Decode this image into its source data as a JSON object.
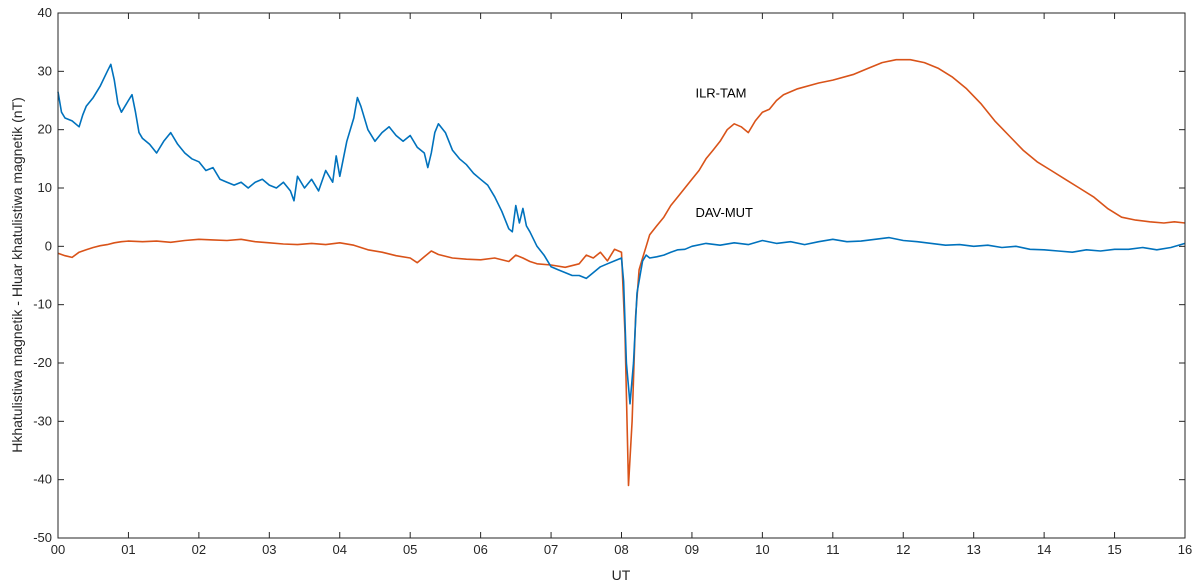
{
  "chart_data": {
    "type": "line",
    "title": "",
    "xlabel": "UT",
    "ylabel": "Hkhatulistiwa magnetik - Hluar khatulistiwa magnetik (nT)",
    "xlim": [
      0,
      16
    ],
    "ylim": [
      -50,
      40
    ],
    "grid": false,
    "legend": "none",
    "x_ticks": [
      0,
      1,
      2,
      3,
      4,
      5,
      6,
      7,
      8,
      9,
      10,
      11,
      12,
      13,
      14,
      15,
      16
    ],
    "x_tick_labels": [
      "00",
      "01",
      "02",
      "03",
      "04",
      "05",
      "06",
      "07",
      "08",
      "09",
      "10",
      "11",
      "12",
      "13",
      "14",
      "15",
      "16"
    ],
    "y_ticks": [
      -50,
      -40,
      -30,
      -20,
      -10,
      0,
      10,
      20,
      30,
      40
    ],
    "y_tick_labels": [
      "-50",
      "-40",
      "-30",
      "-20",
      "-10",
      "0",
      "10",
      "20",
      "30",
      "40"
    ],
    "annotations": [
      {
        "text": "ILR-TAM",
        "x": 9.05,
        "y": 25.5
      },
      {
        "text": "DAV-MUT",
        "x": 9.05,
        "y": 5.0
      }
    ],
    "series": [
      {
        "label": "ILR-TAM",
        "color": "#D95319",
        "points": [
          [
            0.0,
            -1.2
          ],
          [
            0.1,
            -1.6
          ],
          [
            0.2,
            -1.9
          ],
          [
            0.3,
            -1.0
          ],
          [
            0.4,
            -0.6
          ],
          [
            0.5,
            -0.2
          ],
          [
            0.6,
            0.1
          ],
          [
            0.7,
            0.3
          ],
          [
            0.8,
            0.6
          ],
          [
            0.9,
            0.8
          ],
          [
            1.0,
            0.9
          ],
          [
            1.2,
            0.8
          ],
          [
            1.4,
            0.9
          ],
          [
            1.6,
            0.7
          ],
          [
            1.8,
            1.0
          ],
          [
            2.0,
            1.2
          ],
          [
            2.2,
            1.1
          ],
          [
            2.4,
            1.0
          ],
          [
            2.6,
            1.2
          ],
          [
            2.8,
            0.8
          ],
          [
            3.0,
            0.6
          ],
          [
            3.2,
            0.4
          ],
          [
            3.4,
            0.3
          ],
          [
            3.6,
            0.5
          ],
          [
            3.8,
            0.3
          ],
          [
            4.0,
            0.6
          ],
          [
            4.2,
            0.2
          ],
          [
            4.4,
            -0.6
          ],
          [
            4.6,
            -1.0
          ],
          [
            4.8,
            -1.6
          ],
          [
            5.0,
            -2.0
          ],
          [
            5.1,
            -2.8
          ],
          [
            5.2,
            -1.8
          ],
          [
            5.3,
            -0.8
          ],
          [
            5.4,
            -1.4
          ],
          [
            5.6,
            -2.0
          ],
          [
            5.8,
            -2.2
          ],
          [
            6.0,
            -2.3
          ],
          [
            6.2,
            -2.0
          ],
          [
            6.4,
            -2.6
          ],
          [
            6.5,
            -1.5
          ],
          [
            6.6,
            -2.0
          ],
          [
            6.7,
            -2.6
          ],
          [
            6.8,
            -3.0
          ],
          [
            7.0,
            -3.2
          ],
          [
            7.2,
            -3.6
          ],
          [
            7.4,
            -3.0
          ],
          [
            7.5,
            -1.5
          ],
          [
            7.6,
            -2.0
          ],
          [
            7.7,
            -1.0
          ],
          [
            7.8,
            -2.5
          ],
          [
            7.9,
            -0.5
          ],
          [
            8.0,
            -1.0
          ],
          [
            8.05,
            -15.0
          ],
          [
            8.1,
            -41.0
          ],
          [
            8.15,
            -30.0
          ],
          [
            8.2,
            -12.0
          ],
          [
            8.25,
            -4.0
          ],
          [
            8.3,
            -2.0
          ],
          [
            8.35,
            0.0
          ],
          [
            8.4,
            2.0
          ],
          [
            8.5,
            3.5
          ],
          [
            8.6,
            5.0
          ],
          [
            8.7,
            7.0
          ],
          [
            8.8,
            8.5
          ],
          [
            8.9,
            10.0
          ],
          [
            9.0,
            11.5
          ],
          [
            9.1,
            13.0
          ],
          [
            9.2,
            15.0
          ],
          [
            9.3,
            16.5
          ],
          [
            9.4,
            18.0
          ],
          [
            9.5,
            20.0
          ],
          [
            9.6,
            21.0
          ],
          [
            9.7,
            20.5
          ],
          [
            9.8,
            19.5
          ],
          [
            9.9,
            21.5
          ],
          [
            10.0,
            23.0
          ],
          [
            10.1,
            23.5
          ],
          [
            10.2,
            25.0
          ],
          [
            10.3,
            26.0
          ],
          [
            10.5,
            27.0
          ],
          [
            10.8,
            28.0
          ],
          [
            11.0,
            28.5
          ],
          [
            11.3,
            29.5
          ],
          [
            11.5,
            30.5
          ],
          [
            11.7,
            31.5
          ],
          [
            11.9,
            32.0
          ],
          [
            12.1,
            32.0
          ],
          [
            12.3,
            31.5
          ],
          [
            12.5,
            30.5
          ],
          [
            12.7,
            29.0
          ],
          [
            12.9,
            27.0
          ],
          [
            13.1,
            24.5
          ],
          [
            13.3,
            21.5
          ],
          [
            13.5,
            19.0
          ],
          [
            13.7,
            16.5
          ],
          [
            13.9,
            14.5
          ],
          [
            14.1,
            13.0
          ],
          [
            14.3,
            11.5
          ],
          [
            14.5,
            10.0
          ],
          [
            14.7,
            8.5
          ],
          [
            14.9,
            6.5
          ],
          [
            15.1,
            5.0
          ],
          [
            15.3,
            4.5
          ],
          [
            15.5,
            4.2
          ],
          [
            15.7,
            4.0
          ],
          [
            15.85,
            4.2
          ],
          [
            16.0,
            4.0
          ]
        ]
      },
      {
        "label": "DAV-MUT",
        "color": "#0072BD",
        "points": [
          [
            0.0,
            26.5
          ],
          [
            0.05,
            23.0
          ],
          [
            0.1,
            22.0
          ],
          [
            0.2,
            21.5
          ],
          [
            0.3,
            20.5
          ],
          [
            0.35,
            22.5
          ],
          [
            0.4,
            24.0
          ],
          [
            0.5,
            25.5
          ],
          [
            0.6,
            27.5
          ],
          [
            0.7,
            30.0
          ],
          [
            0.75,
            31.2
          ],
          [
            0.8,
            28.5
          ],
          [
            0.85,
            24.5
          ],
          [
            0.9,
            23.0
          ],
          [
            1.0,
            25.0
          ],
          [
            1.05,
            26.0
          ],
          [
            1.1,
            23.0
          ],
          [
            1.15,
            19.5
          ],
          [
            1.2,
            18.5
          ],
          [
            1.3,
            17.5
          ],
          [
            1.4,
            16.0
          ],
          [
            1.5,
            18.0
          ],
          [
            1.6,
            19.5
          ],
          [
            1.7,
            17.5
          ],
          [
            1.8,
            16.0
          ],
          [
            1.9,
            15.0
          ],
          [
            2.0,
            14.5
          ],
          [
            2.1,
            13.0
          ],
          [
            2.2,
            13.5
          ],
          [
            2.3,
            11.5
          ],
          [
            2.4,
            11.0
          ],
          [
            2.5,
            10.5
          ],
          [
            2.6,
            11.0
          ],
          [
            2.7,
            10.0
          ],
          [
            2.8,
            11.0
          ],
          [
            2.9,
            11.5
          ],
          [
            3.0,
            10.5
          ],
          [
            3.1,
            10.0
          ],
          [
            3.2,
            11.0
          ],
          [
            3.3,
            9.5
          ],
          [
            3.35,
            7.8
          ],
          [
            3.4,
            12.0
          ],
          [
            3.5,
            10.0
          ],
          [
            3.6,
            11.5
          ],
          [
            3.7,
            9.5
          ],
          [
            3.8,
            13.0
          ],
          [
            3.9,
            11.0
          ],
          [
            3.95,
            15.5
          ],
          [
            4.0,
            12.0
          ],
          [
            4.1,
            18.0
          ],
          [
            4.2,
            22.0
          ],
          [
            4.25,
            25.5
          ],
          [
            4.3,
            24.0
          ],
          [
            4.4,
            20.0
          ],
          [
            4.5,
            18.0
          ],
          [
            4.6,
            19.5
          ],
          [
            4.7,
            20.5
          ],
          [
            4.8,
            19.0
          ],
          [
            4.9,
            18.0
          ],
          [
            5.0,
            19.0
          ],
          [
            5.1,
            17.0
          ],
          [
            5.2,
            16.0
          ],
          [
            5.25,
            13.5
          ],
          [
            5.3,
            16.0
          ],
          [
            5.35,
            19.5
          ],
          [
            5.4,
            21.0
          ],
          [
            5.5,
            19.5
          ],
          [
            5.6,
            16.5
          ],
          [
            5.7,
            15.0
          ],
          [
            5.8,
            14.0
          ],
          [
            5.9,
            12.5
          ],
          [
            6.0,
            11.5
          ],
          [
            6.1,
            10.5
          ],
          [
            6.2,
            8.5
          ],
          [
            6.3,
            6.0
          ],
          [
            6.4,
            3.0
          ],
          [
            6.45,
            2.5
          ],
          [
            6.5,
            7.0
          ],
          [
            6.55,
            4.0
          ],
          [
            6.6,
            6.5
          ],
          [
            6.65,
            3.5
          ],
          [
            6.7,
            2.5
          ],
          [
            6.8,
            0.0
          ],
          [
            6.9,
            -1.5
          ],
          [
            7.0,
            -3.5
          ],
          [
            7.1,
            -4.0
          ],
          [
            7.2,
            -4.5
          ],
          [
            7.3,
            -5.0
          ],
          [
            7.4,
            -5.0
          ],
          [
            7.5,
            -5.5
          ],
          [
            7.6,
            -4.5
          ],
          [
            7.7,
            -3.5
          ],
          [
            7.8,
            -3.0
          ],
          [
            7.9,
            -2.5
          ],
          [
            8.0,
            -2.0
          ],
          [
            8.03,
            -6.0
          ],
          [
            8.07,
            -20.0
          ],
          [
            8.12,
            -27.0
          ],
          [
            8.17,
            -20.0
          ],
          [
            8.22,
            -8.0
          ],
          [
            8.3,
            -2.5
          ],
          [
            8.35,
            -1.5
          ],
          [
            8.4,
            -2.0
          ],
          [
            8.5,
            -1.8
          ],
          [
            8.6,
            -1.5
          ],
          [
            8.7,
            -1.0
          ],
          [
            8.8,
            -0.6
          ],
          [
            8.9,
            -0.5
          ],
          [
            9.0,
            0.0
          ],
          [
            9.2,
            0.5
          ],
          [
            9.4,
            0.2
          ],
          [
            9.6,
            0.6
          ],
          [
            9.8,
            0.3
          ],
          [
            10.0,
            1.0
          ],
          [
            10.2,
            0.5
          ],
          [
            10.4,
            0.8
          ],
          [
            10.6,
            0.3
          ],
          [
            10.8,
            0.8
          ],
          [
            11.0,
            1.2
          ],
          [
            11.2,
            0.8
          ],
          [
            11.4,
            0.9
          ],
          [
            11.6,
            1.2
          ],
          [
            11.8,
            1.5
          ],
          [
            12.0,
            1.0
          ],
          [
            12.2,
            0.8
          ],
          [
            12.4,
            0.5
          ],
          [
            12.6,
            0.2
          ],
          [
            12.8,
            0.3
          ],
          [
            13.0,
            0.0
          ],
          [
            13.2,
            0.2
          ],
          [
            13.4,
            -0.2
          ],
          [
            13.6,
            0.0
          ],
          [
            13.8,
            -0.5
          ],
          [
            14.0,
            -0.6
          ],
          [
            14.2,
            -0.8
          ],
          [
            14.4,
            -1.0
          ],
          [
            14.6,
            -0.6
          ],
          [
            14.8,
            -0.8
          ],
          [
            15.0,
            -0.5
          ],
          [
            15.2,
            -0.5
          ],
          [
            15.4,
            -0.2
          ],
          [
            15.6,
            -0.6
          ],
          [
            15.8,
            -0.2
          ],
          [
            16.0,
            0.5
          ]
        ]
      }
    ]
  }
}
